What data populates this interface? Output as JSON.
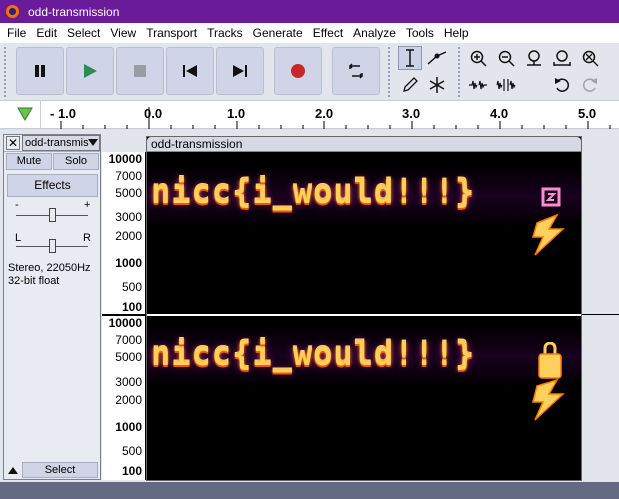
{
  "window": {
    "title": "odd-transmission"
  },
  "menu": [
    "File",
    "Edit",
    "Select",
    "View",
    "Transport",
    "Tracks",
    "Generate",
    "Effect",
    "Analyze",
    "Tools",
    "Help"
  ],
  "transport": [
    "pause",
    "play",
    "stop",
    "skip-to-start",
    "skip-to-end",
    "record",
    "loop"
  ],
  "ruler": {
    "labels": [
      "- 1.0",
      "0.0",
      "1.0",
      "2.0",
      "3.0",
      "4.0",
      "5.0"
    ]
  },
  "track": {
    "name": "odd-transmis",
    "mute_label": "Mute",
    "solo_label": "Solo",
    "effects_label": "Effects",
    "gain_minus": "-",
    "gain_plus": "+",
    "pan_left": "L",
    "pan_right": "R",
    "info_line1": "Stereo, 22050Hz",
    "info_line2": "32-bit float",
    "select_label": "Select",
    "clip_name": "odd-transmission"
  },
  "yaxis_channel1": [
    "10000",
    "7000",
    "5000",
    "3000",
    "2000",
    "1000",
    "500",
    "100"
  ],
  "yaxis_channel2": [
    "10000",
    "7000",
    "5000",
    "3000",
    "2000",
    "1000",
    "500",
    "100"
  ],
  "spectrogram": {
    "channel1_text": "nicc{i_would!!!}",
    "channel2_text": "nicc{i_would!!!}"
  }
}
